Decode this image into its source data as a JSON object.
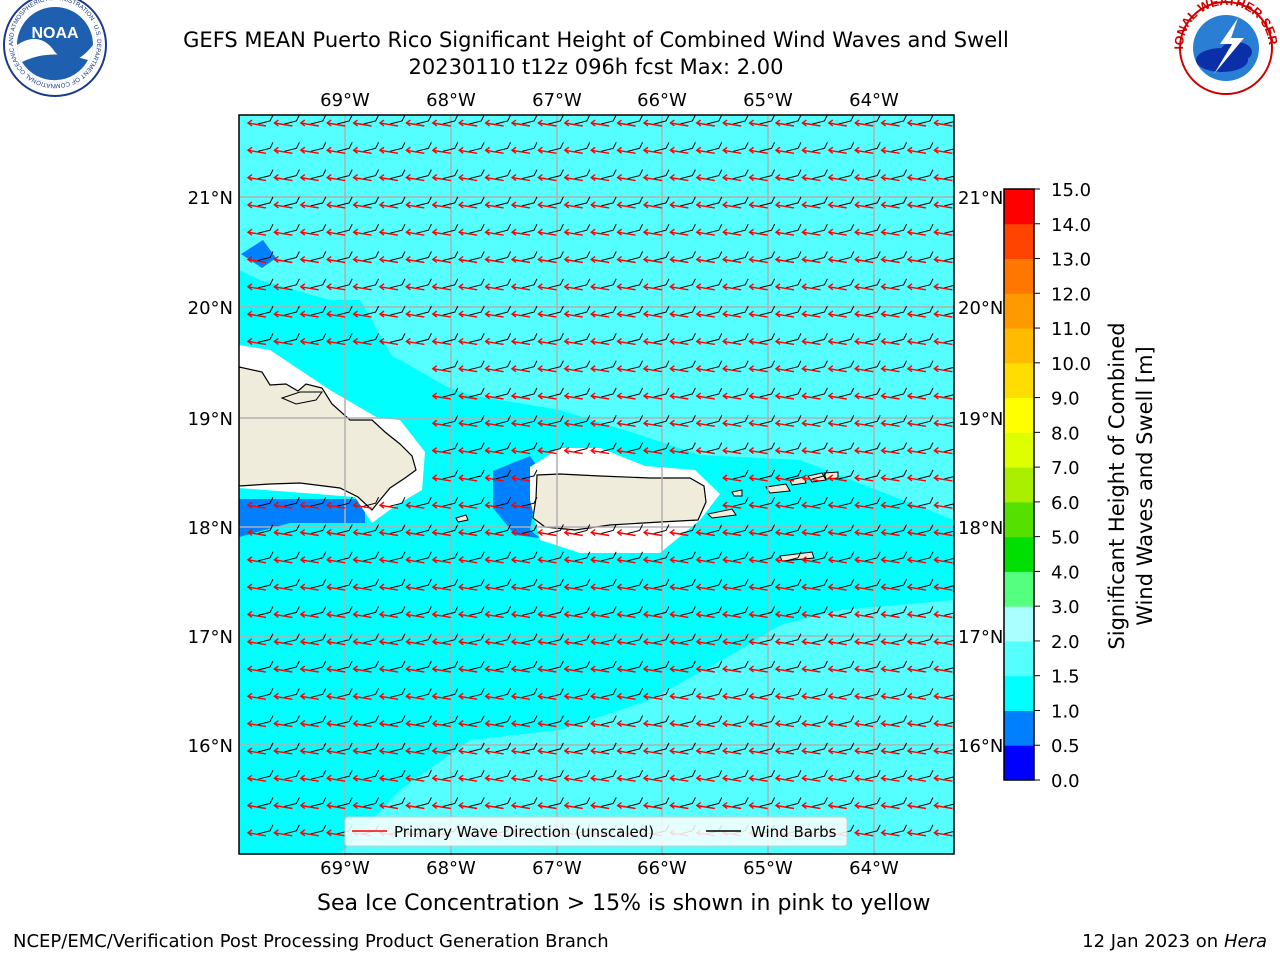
{
  "title": {
    "line1": "GEFS MEAN Puerto Rico Significant Height of Combined Wind Waves and Swell",
    "line2": "20230110 t12z 096h fcst   Max: 2.00"
  },
  "map": {
    "lon_labels": [
      "69°W",
      "68°W",
      "67°W",
      "66°W",
      "65°W",
      "64°W"
    ],
    "lat_labels": [
      "21°N",
      "20°N",
      "19°N",
      "18°N",
      "17°N",
      "16°N"
    ],
    "colors": {
      "land": "#efecdc",
      "sea_main": "#00ffff",
      "sea_light": "#55ffff",
      "sea_blue": "#0080ff",
      "grid": "#b0b0b0",
      "wave_arrow": "#ff0000",
      "barb": "#000000"
    }
  },
  "legend": {
    "wave_label": "Primary Wave Direction (unscaled)",
    "barb_label": "Wind Barbs"
  },
  "colorbar": {
    "label_line1": "Significant Height of Combined",
    "label_line2": "Wind Waves and Swell [m]",
    "ticks": [
      "0.0",
      "0.5",
      "1.0",
      "1.5",
      "2.0",
      "3.0",
      "4.0",
      "5.0",
      "6.0",
      "7.0",
      "8.0",
      "9.0",
      "10.0",
      "11.0",
      "12.0",
      "13.0",
      "14.0",
      "15.0"
    ],
    "colors": [
      "#0000ff",
      "#0080ff",
      "#00ffff",
      "#55ffff",
      "#aaffff",
      "#55ff80",
      "#00e000",
      "#55e000",
      "#aaee00",
      "#ddff00",
      "#ffff00",
      "#ffdd00",
      "#ffbb00",
      "#ff9900",
      "#ff7700",
      "#ff4400",
      "#ff0000"
    ]
  },
  "caption": "Sea Ice Concentration > 15% is shown in pink to yellow",
  "footer": {
    "left": "NCEP/EMC/Verification Post Processing Product Generation Branch",
    "right_prefix": "12 Jan 2023 on ",
    "right_italic": "Hera"
  },
  "logos": {
    "noaa_text": "NOAA",
    "noaa_ring": "NATIONAL OCEANIC AND ATMOSPHERIC ADMINISTRATION · U.S. DEPARTMENT OF COMMERCE",
    "nws_ring": "NATIONAL WEATHER SERVICE"
  }
}
